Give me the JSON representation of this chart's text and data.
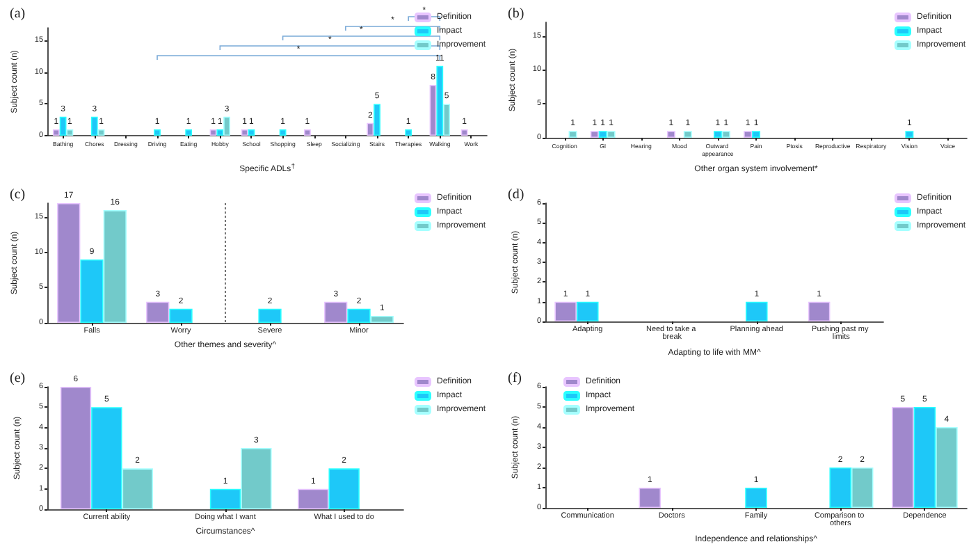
{
  "chart_data": [
    {
      "type": "bar",
      "title": "(a)",
      "xlabel": "Specific ADLs$^{†}$",
      "ylabel": "Subject count (n)",
      "categories": [
        "Bathing",
        "Chores",
        "Dressing",
        "Driving",
        "Eating",
        "Hobby",
        "School",
        "Shopping",
        "Sleep",
        "Socializing",
        "Stairs",
        "Therapies",
        "Walking",
        "Work"
      ],
      "series": [
        {
          "name": "Definition",
          "color": "#a088cc",
          "values": [
            1,
            null,
            null,
            null,
            null,
            1,
            1,
            null,
            1,
            null,
            2,
            null,
            8,
            1
          ]
        },
        {
          "name": "Impact",
          "color": "#1ec8f8",
          "values": [
            3,
            3,
            null,
            1,
            1,
            1,
            1,
            1,
            null,
            null,
            5,
            1,
            11,
            null
          ]
        },
        {
          "name": "Improvement",
          "color": "#72caca",
          "values": [
            1,
            1,
            null,
            null,
            null,
            3,
            null,
            null,
            null,
            null,
            null,
            null,
            5,
            null
          ]
        }
      ],
      "ylim": [
        0,
        17
      ],
      "yticks": [
        0,
        5,
        10,
        15
      ],
      "grid": false,
      "legend": "top right",
      "data_labels": true,
      "annotations": [
        "*",
        "*",
        "*",
        "*",
        "*"
      ]
    },
    {
      "type": "bar",
      "title": "(b)",
      "xlabel": "Other organ system involvement*",
      "ylabel": "Subject count (n)",
      "categories": [
        "Cognition",
        "GI",
        "Hearing",
        "Mood",
        "Outward appearance",
        "Pain",
        "Ptosis",
        "Reproductive",
        "Respiratory",
        "Vision",
        "Voice"
      ],
      "series": [
        {
          "name": "Definition",
          "color": "#a088cc",
          "values": [
            null,
            1,
            null,
            1,
            null,
            1,
            null,
            null,
            null,
            null,
            null
          ]
        },
        {
          "name": "Impact",
          "color": "#1ec8f8",
          "values": [
            null,
            1,
            null,
            null,
            1,
            1,
            null,
            null,
            null,
            1,
            null
          ]
        },
        {
          "name": "Improvement",
          "color": "#72caca",
          "values": [
            1,
            1,
            null,
            1,
            1,
            null,
            null,
            null,
            null,
            null,
            null
          ]
        }
      ],
      "ylim": [
        0,
        17
      ],
      "yticks": [
        0,
        5,
        10,
        15
      ],
      "grid": false,
      "legend": "top right",
      "data_labels": true
    },
    {
      "type": "bar",
      "title": "(c)",
      "xlabel": "Other themes and severity^",
      "ylabel": "Subject count (n)",
      "categories": [
        "Falls",
        "Worry",
        "Severe",
        "Minor"
      ],
      "series": [
        {
          "name": "Definition",
          "color": "#a088cc",
          "values": [
            17,
            3,
            null,
            3
          ]
        },
        {
          "name": "Impact",
          "color": "#1ec8f8",
          "values": [
            9,
            2,
            2,
            2
          ]
        },
        {
          "name": "Improvement",
          "color": "#72caca",
          "values": [
            16,
            null,
            null,
            1
          ]
        }
      ],
      "ylim": [
        0,
        17
      ],
      "yticks": [
        0,
        5,
        10,
        15
      ],
      "grid": false,
      "legend": "top right",
      "data_labels": true
    },
    {
      "type": "bar",
      "title": "(d)",
      "xlabel": "Adapting to life with MM^",
      "ylabel": "Subject count (n)",
      "categories": [
        "Adapting",
        "Need to take a break",
        "Planning ahead",
        "Pushing past my limits"
      ],
      "series": [
        {
          "name": "Definition",
          "color": "#a088cc",
          "values": [
            1,
            null,
            null,
            1
          ]
        },
        {
          "name": "Impact",
          "color": "#1ec8f8",
          "values": [
            1,
            null,
            1,
            null
          ]
        },
        {
          "name": "Improvement",
          "color": "#72caca",
          "values": [
            null,
            null,
            null,
            null
          ]
        }
      ],
      "ylim": [
        0,
        6
      ],
      "yticks": [
        0,
        1,
        2,
        3,
        4,
        5,
        6
      ],
      "grid": false,
      "legend": "top right",
      "data_labels": true
    },
    {
      "type": "bar",
      "title": "(e)",
      "xlabel": "Circumstances^",
      "ylabel": "Subject count (n)",
      "categories": [
        "Current ability",
        "Doing what I want",
        "What I used to do"
      ],
      "series": [
        {
          "name": "Definition",
          "color": "#a088cc",
          "values": [
            6,
            null,
            1
          ]
        },
        {
          "name": "Impact",
          "color": "#1ec8f8",
          "values": [
            5,
            1,
            2
          ]
        },
        {
          "name": "Improvement",
          "color": "#72caca",
          "values": [
            2,
            3,
            null
          ]
        }
      ],
      "ylim": [
        0,
        6
      ],
      "yticks": [
        0,
        1,
        2,
        3,
        4,
        5,
        6
      ],
      "grid": false,
      "legend": "top right",
      "data_labels": true
    },
    {
      "type": "bar",
      "title": "(f)",
      "xlabel": "Independence and relationships^",
      "ylabel": "Subject count (n)",
      "categories": [
        "Communication",
        "Doctors",
        "Family",
        "Comparison to others",
        "Dependence"
      ],
      "series": [
        {
          "name": "Definition",
          "color": "#a088cc",
          "values": [
            null,
            1,
            null,
            null,
            5
          ]
        },
        {
          "name": "Impact",
          "color": "#1ec8f8",
          "values": [
            null,
            null,
            1,
            2,
            5
          ]
        },
        {
          "name": "Improvement",
          "color": "#72caca",
          "values": [
            null,
            null,
            null,
            2,
            4
          ]
        }
      ],
      "ylim": [
        0,
        6
      ],
      "yticks": [
        0,
        1,
        2,
        3,
        4,
        5,
        6
      ],
      "grid": false,
      "legend": "top left",
      "data_labels": true
    }
  ]
}
